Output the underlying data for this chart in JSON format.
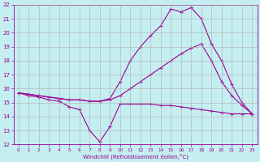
{
  "xlabel": "Windchill (Refroidissement éolien,°C)",
  "background_color": "#c5eef0",
  "grid_color": "#b0b0b0",
  "line_color": "#990099",
  "xlim": [
    -0.5,
    23.5
  ],
  "ylim": [
    12,
    22
  ],
  "xtick_vals": [
    0,
    1,
    2,
    3,
    4,
    5,
    6,
    7,
    8,
    9,
    10,
    11,
    12,
    13,
    14,
    15,
    16,
    17,
    18,
    19,
    20,
    21,
    22,
    23
  ],
  "ytick_vals": [
    12,
    13,
    14,
    15,
    16,
    17,
    18,
    19,
    20,
    21,
    22
  ],
  "series": [
    {
      "x": [
        0,
        1,
        2,
        3,
        4,
        5,
        6,
        7,
        8,
        9,
        10,
        11,
        12,
        13,
        14,
        15,
        16,
        17,
        18,
        19,
        20,
        21,
        22,
        23
      ],
      "y": [
        15.7,
        15.5,
        15.4,
        15.2,
        15.1,
        14.7,
        14.5,
        13.0,
        12.2,
        13.3,
        14.9,
        14.9,
        14.9,
        14.9,
        14.8,
        14.8,
        14.7,
        14.6,
        14.5,
        14.4,
        14.3,
        14.2,
        14.2,
        14.2
      ]
    },
    {
      "x": [
        0,
        1,
        2,
        3,
        4,
        5,
        6,
        7,
        8,
        9,
        10,
        11,
        12,
        13,
        14,
        15,
        16,
        17,
        18,
        19,
        20,
        21,
        22,
        23
      ],
      "y": [
        15.7,
        15.6,
        15.5,
        15.4,
        15.3,
        15.2,
        15.2,
        15.1,
        15.1,
        15.2,
        15.5,
        16.0,
        16.5,
        17.0,
        17.5,
        18.0,
        18.5,
        18.9,
        19.2,
        18.0,
        16.5,
        15.5,
        14.8,
        14.2
      ]
    },
    {
      "x": [
        0,
        1,
        2,
        3,
        4,
        5,
        6,
        7,
        8,
        9,
        10,
        11,
        12,
        13,
        14,
        15,
        16,
        17,
        18,
        19,
        20,
        21,
        22,
        23
      ],
      "y": [
        15.7,
        15.6,
        15.5,
        15.4,
        15.3,
        15.2,
        15.2,
        15.1,
        15.1,
        15.3,
        16.5,
        18.0,
        19.0,
        19.8,
        20.5,
        21.7,
        21.5,
        21.8,
        21.0,
        19.2,
        18.0,
        16.3,
        15.0,
        14.2
      ]
    }
  ]
}
